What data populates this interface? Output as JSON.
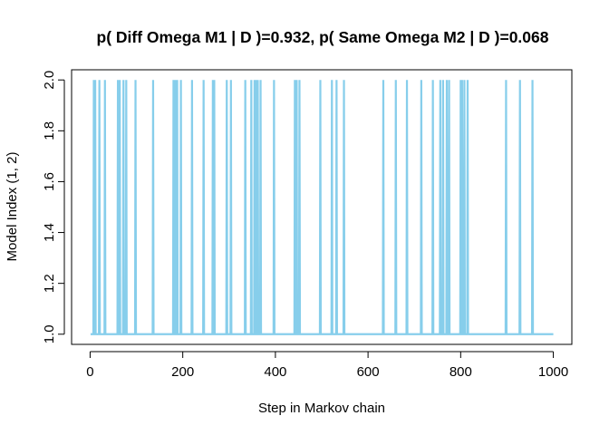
{
  "chart_data": {
    "type": "line",
    "title": "p( Diff Omega M1 | D )=0.932, p( Same Omega M2 | D )=0.068",
    "xlabel": "Step in Markov chain",
    "ylabel": "Model Index (1, 2)",
    "xlim": [
      -40,
      1040
    ],
    "ylim": [
      0.96,
      2.04
    ],
    "x_ticks": [
      0,
      200,
      400,
      600,
      800,
      1000
    ],
    "y_ticks": [
      1.0,
      1.2,
      1.4,
      1.6,
      1.8,
      2.0
    ],
    "x_tick_labels": [
      "0",
      "200",
      "400",
      "600",
      "800",
      "1000"
    ],
    "y_tick_labels": [
      "1.0",
      "1.2",
      "1.4",
      "1.6",
      "1.8",
      "2.0"
    ],
    "grid": false,
    "line_color": "#87CEEB",
    "series": [
      {
        "x_range": [
          1,
          1000
        ],
        "baseline": 1,
        "spike_value": 2,
        "spike_steps": [
          8,
          11,
          20,
          32,
          60,
          64,
          72,
          78,
          98,
          136,
          180,
          184,
          188,
          196,
          220,
          245,
          265,
          268,
          295,
          304,
          335,
          348,
          355,
          358,
          362,
          368,
          397,
          442,
          446,
          452,
          497,
          522,
          532,
          548,
          633,
          660,
          684,
          715,
          740,
          756,
          762,
          770,
          775,
          800,
          803,
          808,
          815,
          898,
          928,
          955
        ]
      }
    ]
  }
}
